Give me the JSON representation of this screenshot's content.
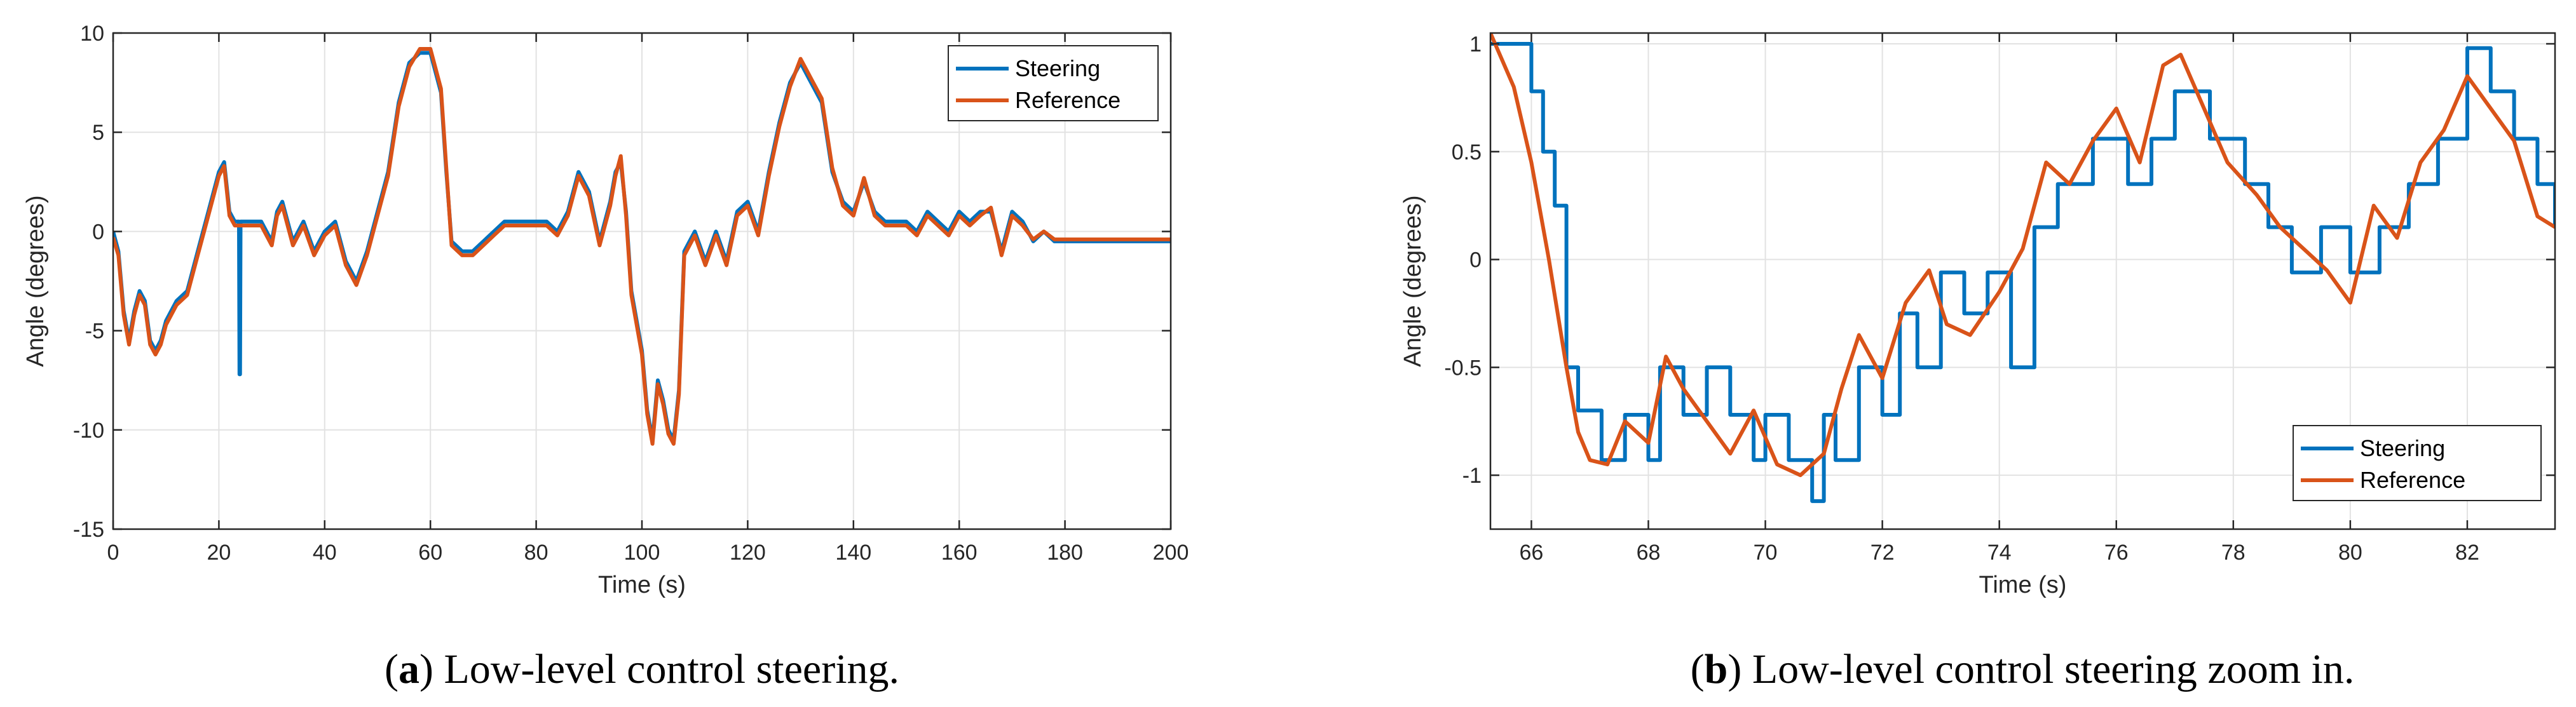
{
  "chart_data": [
    {
      "type": "line",
      "panel_letter": "a",
      "caption": "Low-level control steering.",
      "xlabel": "Time (s)",
      "ylabel": "Angle (degrees)",
      "xlim": [
        0,
        200
      ],
      "ylim": [
        -15,
        10
      ],
      "xticks": [
        0,
        20,
        40,
        60,
        80,
        100,
        120,
        140,
        160,
        180,
        200
      ],
      "yticks": [
        -15,
        -10,
        -5,
        0,
        5,
        10
      ],
      "grid": true,
      "legend_position": "top-right",
      "series": [
        {
          "name": "Steering",
          "color": "#0072BD",
          "x": [
            0,
            1,
            2,
            3,
            4,
            5,
            6,
            7,
            8,
            9,
            10,
            12,
            14,
            16,
            18,
            20,
            21,
            22,
            23,
            23.8,
            23.9,
            24,
            24.1,
            26,
            28,
            30,
            31,
            32,
            34,
            36,
            38,
            40,
            42,
            44,
            46,
            48,
            50,
            52,
            54,
            56,
            58,
            60,
            62,
            63,
            64,
            66,
            68,
            70,
            72,
            74,
            76,
            78,
            80,
            82,
            84,
            86,
            88,
            90,
            92,
            94,
            95,
            96,
            97,
            98,
            100,
            101,
            102,
            103,
            104,
            105,
            106,
            107,
            108,
            110,
            112,
            114,
            116,
            118,
            120,
            122,
            124,
            126,
            128,
            130,
            131,
            132,
            134,
            136,
            138,
            140,
            142,
            144,
            146,
            148,
            150,
            152,
            154,
            156,
            158,
            160,
            162,
            164,
            166,
            168,
            170,
            172,
            174,
            176,
            178,
            180,
            200
          ],
          "y": [
            0,
            -1,
            -4,
            -5.5,
            -4,
            -3,
            -3.5,
            -5.5,
            -6,
            -5.5,
            -4.5,
            -3.5,
            -3,
            -1,
            1,
            3,
            3.5,
            1,
            0.5,
            0.5,
            -7.2,
            -7.2,
            0.5,
            0.5,
            0.5,
            -0.5,
            1,
            1.5,
            -0.5,
            0.5,
            -1,
            0,
            0.5,
            -1.5,
            -2.5,
            -1,
            1,
            3,
            6.5,
            8.5,
            9,
            9,
            7,
            3,
            -0.5,
            -1,
            -1,
            -0.5,
            0,
            0.5,
            0.5,
            0.5,
            0.5,
            0.5,
            0,
            1,
            3,
            2,
            -0.5,
            1.5,
            3,
            3.5,
            1,
            -3,
            -6,
            -9,
            -10.5,
            -7.5,
            -8.5,
            -10,
            -10.5,
            -8,
            -1,
            0,
            -1.5,
            0,
            -1.5,
            1,
            1.5,
            0,
            3,
            5.5,
            7.5,
            8.5,
            8,
            7.5,
            6.5,
            3,
            1.5,
            1,
            2.5,
            1,
            0.5,
            0.5,
            0.5,
            0,
            1,
            0.5,
            0,
            1,
            0.5,
            1,
            1,
            -1,
            1,
            0.5,
            -0.5,
            0,
            -0.5,
            -0.5,
            -0.5
          ]
        },
        {
          "name": "Reference",
          "color": "#D95319",
          "x": [
            0,
            1,
            2,
            3,
            4,
            5,
            6,
            7,
            8,
            9,
            10,
            12,
            14,
            16,
            18,
            20,
            21,
            22,
            23,
            24,
            26,
            28,
            30,
            31,
            32,
            34,
            36,
            38,
            40,
            42,
            44,
            46,
            48,
            50,
            52,
            54,
            56,
            58,
            60,
            62,
            63,
            64,
            66,
            68,
            70,
            72,
            74,
            76,
            78,
            80,
            82,
            84,
            86,
            88,
            90,
            92,
            94,
            95,
            96,
            97,
            98,
            100,
            101,
            102,
            103,
            104,
            105,
            106,
            107,
            108,
            110,
            112,
            114,
            116,
            118,
            120,
            122,
            124,
            126,
            128,
            130,
            131,
            132,
            134,
            136,
            138,
            140,
            142,
            144,
            146,
            148,
            150,
            152,
            154,
            156,
            158,
            160,
            162,
            164,
            166,
            168,
            170,
            172,
            174,
            176,
            178,
            180,
            200
          ],
          "y": [
            -0.3,
            -1.2,
            -4.2,
            -5.7,
            -4.2,
            -3.2,
            -3.7,
            -5.7,
            -6.2,
            -5.7,
            -4.7,
            -3.7,
            -3.2,
            -1.2,
            0.8,
            2.8,
            3.3,
            0.8,
            0.3,
            0.3,
            0.3,
            0.3,
            -0.7,
            0.8,
            1.3,
            -0.7,
            0.3,
            -1.2,
            -0.2,
            0.3,
            -1.7,
            -2.7,
            -1.2,
            0.8,
            2.8,
            6.3,
            8.3,
            9.2,
            9.2,
            7.2,
            3.2,
            -0.7,
            -1.2,
            -1.2,
            -0.7,
            -0.2,
            0.3,
            0.3,
            0.3,
            0.3,
            0.3,
            -0.2,
            0.8,
            2.8,
            1.8,
            -0.7,
            1.3,
            2.8,
            3.8,
            0.8,
            -3.2,
            -6.2,
            -9.2,
            -10.7,
            -7.7,
            -8.7,
            -10.2,
            -10.7,
            -8.2,
            -1.2,
            -0.2,
            -1.7,
            -0.2,
            -1.7,
            0.8,
            1.3,
            -0.2,
            2.8,
            5.3,
            7.3,
            8.7,
            8.2,
            7.7,
            6.7,
            3.2,
            1.3,
            0.8,
            2.7,
            0.8,
            0.3,
            0.3,
            0.3,
            -0.2,
            0.8,
            0.3,
            -0.2,
            0.8,
            0.3,
            0.8,
            1.2,
            -1.2,
            0.8,
            0.3,
            -0.4,
            0,
            -0.4,
            -0.4,
            -0.4
          ]
        }
      ]
    },
    {
      "type": "line",
      "panel_letter": "b",
      "caption": "Low-level control steering zoom in.",
      "xlabel": "Time (s)",
      "ylabel": "Angle (degrees)",
      "xlim": [
        65.3,
        83.5
      ],
      "ylim": [
        -1.25,
        1.05
      ],
      "xticks": [
        66,
        68,
        70,
        72,
        74,
        76,
        78,
        80,
        82
      ],
      "yticks": [
        -1,
        -0.5,
        0,
        0.5,
        1
      ],
      "grid": true,
      "legend_position": "bottom-right",
      "series": [
        {
          "name": "Steering",
          "color": "#0072BD",
          "step": true,
          "x": [
            65.3,
            65.8,
            66.0,
            66.2,
            66.4,
            66.6,
            66.8,
            67.2,
            67.6,
            68.0,
            68.2,
            68.6,
            69.0,
            69.4,
            69.8,
            70.0,
            70.4,
            70.8,
            71.0,
            71.2,
            71.6,
            72.0,
            72.3,
            72.6,
            73.0,
            73.4,
            73.8,
            74.2,
            74.6,
            75.0,
            75.6,
            76.2,
            76.6,
            77.0,
            77.6,
            78.2,
            78.6,
            79.0,
            79.5,
            80.0,
            80.5,
            81.0,
            81.5,
            82.0,
            82.4,
            82.8,
            83.2,
            83.5
          ],
          "y": [
            1.0,
            1.0,
            0.78,
            0.5,
            0.25,
            -0.5,
            -0.7,
            -0.93,
            -0.72,
            -0.93,
            -0.5,
            -0.72,
            -0.5,
            -0.72,
            -0.93,
            -0.72,
            -0.93,
            -1.12,
            -0.72,
            -0.93,
            -0.5,
            -0.72,
            -0.25,
            -0.5,
            -0.06,
            -0.25,
            -0.06,
            -0.5,
            0.15,
            0.35,
            0.56,
            0.35,
            0.56,
            0.78,
            0.56,
            0.35,
            0.15,
            -0.06,
            0.15,
            -0.06,
            0.15,
            0.35,
            0.56,
            0.98,
            0.78,
            0.56,
            0.35,
            0.15
          ]
        },
        {
          "name": "Reference",
          "color": "#D95319",
          "x": [
            65.3,
            65.7,
            66.0,
            66.3,
            66.6,
            66.8,
            67.0,
            67.3,
            67.6,
            68.0,
            68.3,
            68.6,
            69.0,
            69.4,
            69.8,
            70.2,
            70.6,
            71.0,
            71.3,
            71.6,
            72.0,
            72.4,
            72.8,
            73.1,
            73.5,
            74.0,
            74.4,
            74.8,
            75.2,
            75.6,
            76.0,
            76.4,
            76.8,
            77.1,
            77.5,
            77.9,
            78.4,
            78.8,
            79.2,
            79.6,
            80.0,
            80.4,
            80.8,
            81.2,
            81.6,
            82.0,
            82.4,
            82.8,
            83.2,
            83.5
          ],
          "y": [
            1.05,
            0.8,
            0.45,
            0.0,
            -0.5,
            -0.8,
            -0.93,
            -0.95,
            -0.75,
            -0.85,
            -0.45,
            -0.6,
            -0.75,
            -0.9,
            -0.7,
            -0.95,
            -1.0,
            -0.9,
            -0.6,
            -0.35,
            -0.55,
            -0.2,
            -0.05,
            -0.3,
            -0.35,
            -0.15,
            0.05,
            0.45,
            0.35,
            0.55,
            0.7,
            0.45,
            0.9,
            0.95,
            0.7,
            0.45,
            0.3,
            0.15,
            0.05,
            -0.05,
            -0.2,
            0.25,
            0.1,
            0.45,
            0.6,
            0.85,
            0.7,
            0.55,
            0.2,
            0.15
          ]
        }
      ]
    }
  ]
}
